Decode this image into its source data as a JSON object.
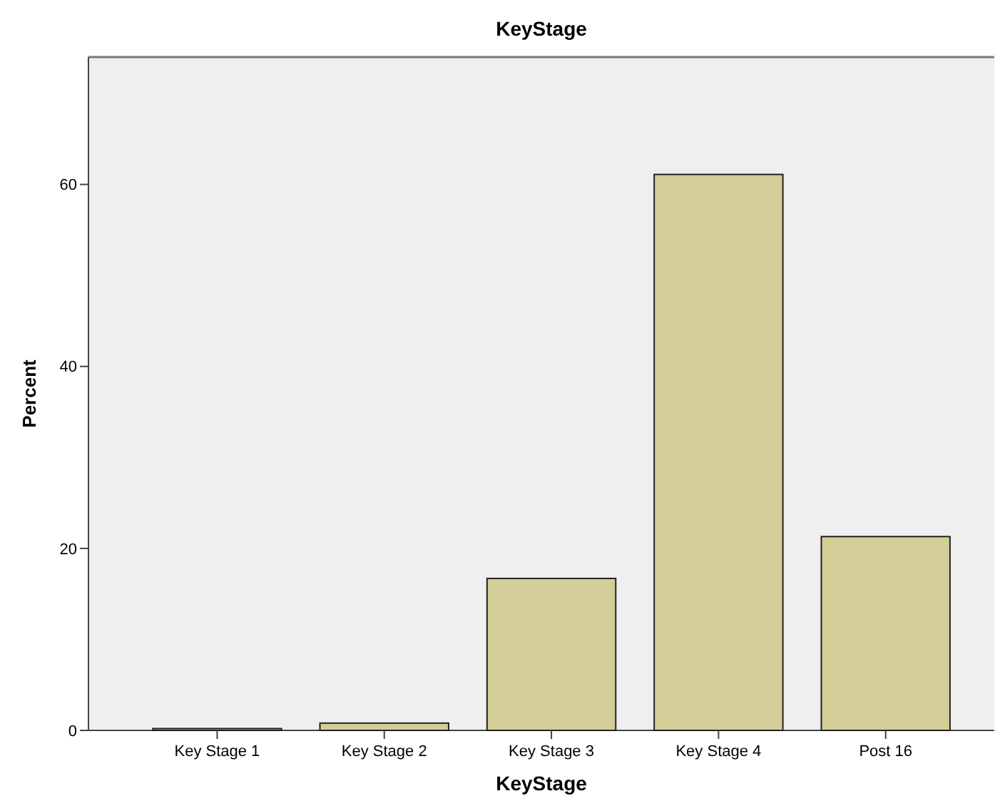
{
  "chart_data": {
    "type": "bar",
    "title": "KeyStage",
    "xlabel": "KeyStage",
    "ylabel": "Percent",
    "categories": [
      "Key Stage 1",
      "Key Stage 2",
      "Key Stage 3",
      "Key Stage 4",
      "Post 16"
    ],
    "values": [
      0.2,
      0.8,
      16.7,
      61.1,
      21.3
    ],
    "color": "#d3ce97",
    "ylim": [
      0,
      74
    ],
    "yticks": [
      0,
      20,
      40,
      60
    ],
    "grid": false
  }
}
